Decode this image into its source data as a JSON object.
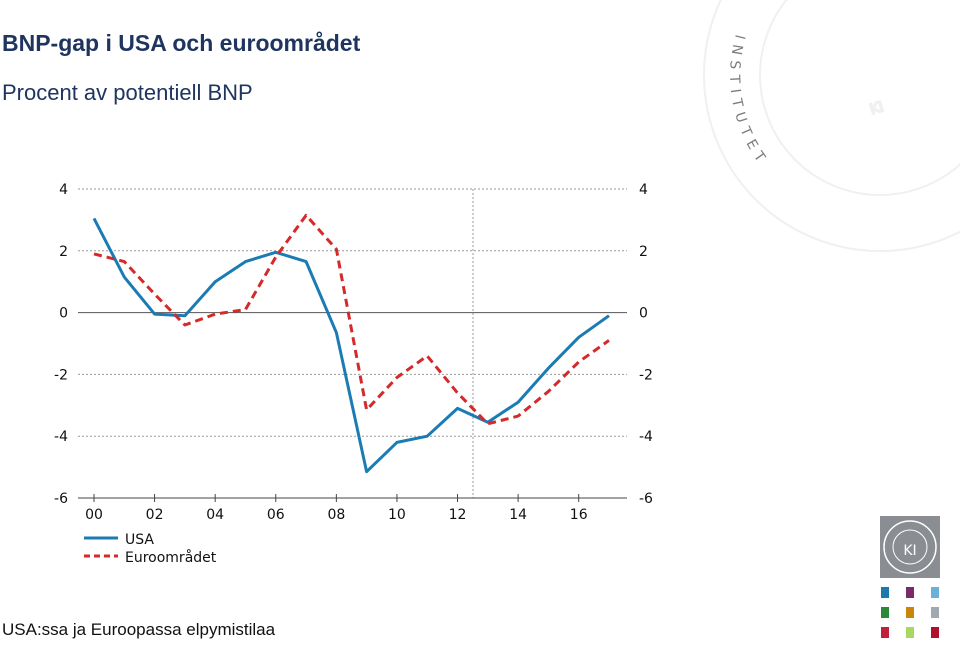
{
  "header": {
    "title": "BNP-gap i USA och euroområdet",
    "subtitle": "Procent av potentiell BNP"
  },
  "footer": {
    "caption": "USA:ssa ja Euroopassa elpymistilaa"
  },
  "branding": {
    "watermark_letters": "INSTITUTET",
    "watermark_monogram": "KI",
    "logo_text": "KI",
    "icon_colors": [
      "#1a7ab0",
      "#7a2a6a",
      "#6ab0d8",
      "#2a8a3a",
      "#c8860a",
      "#a0a8b0",
      "#c0203a",
      "#a8d860",
      "#b01030"
    ]
  },
  "chart_data": {
    "type": "line",
    "title": "BNP-gap i USA och euroområdet",
    "subtitle": "Procent av potentiell BNP",
    "xlabel": "",
    "ylabel": "",
    "x": [
      2000,
      2001,
      2002,
      2003,
      2004,
      2005,
      2006,
      2007,
      2008,
      2009,
      2010,
      2011,
      2012,
      2013,
      2014,
      2015,
      2016,
      2017
    ],
    "x_tick_labels": [
      "00",
      "02",
      "04",
      "06",
      "08",
      "10",
      "12",
      "14",
      "16"
    ],
    "y_ticks": [
      "4",
      "2",
      "0",
      "-2",
      "-4",
      "-6"
    ],
    "ylim": [
      -6,
      4
    ],
    "grid": "horizontal dashed",
    "legend_position": "bottom-left",
    "series": [
      {
        "name": "USA",
        "color": "#1b7bb3",
        "style": "solid",
        "values": [
          3.05,
          1.15,
          -0.05,
          -0.1,
          1.0,
          1.65,
          1.95,
          1.65,
          -0.65,
          -5.15,
          -4.2,
          -4.0,
          -3.1,
          -3.55,
          -2.9,
          -1.8,
          -0.8,
          -0.1
        ]
      },
      {
        "name": "Euroområdet",
        "color": "#d42a2a",
        "style": "dashed",
        "values": [
          1.9,
          1.65,
          0.6,
          -0.4,
          -0.05,
          0.1,
          1.8,
          3.15,
          2.05,
          -3.15,
          -2.1,
          -1.4,
          -2.6,
          -3.6,
          -3.35,
          -2.55,
          -1.6,
          -0.9
        ]
      }
    ]
  }
}
